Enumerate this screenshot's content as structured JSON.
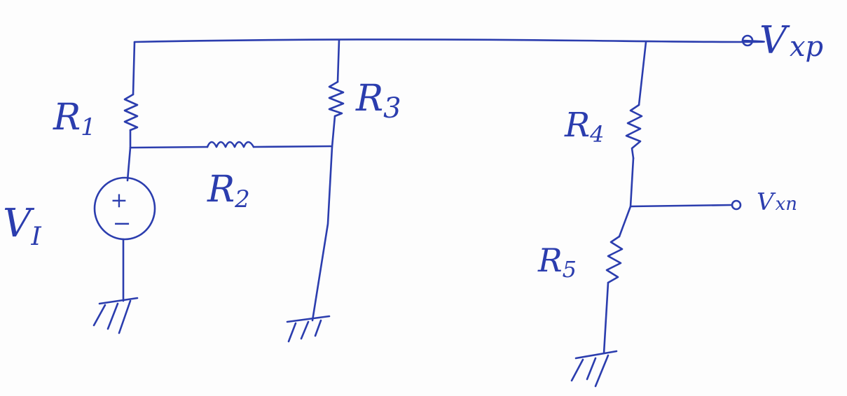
{
  "colors": {
    "ink": "#2b3dae",
    "paper": "#fdfdfd"
  },
  "labels": {
    "r1": {
      "main": "R",
      "sub": "1"
    },
    "r2": {
      "main": "R",
      "sub": "2"
    },
    "r3": {
      "main": "R",
      "sub": "3"
    },
    "r4": {
      "main": "R",
      "sub": "4"
    },
    "r5": {
      "main": "R",
      "sub": "5"
    },
    "source": {
      "main": "V",
      "sub": "I",
      "plus": "+",
      "minus": "−"
    },
    "vxp": {
      "main": "V",
      "sub": "xp"
    },
    "vxn": {
      "main": "V",
      "sub": "xn"
    }
  }
}
